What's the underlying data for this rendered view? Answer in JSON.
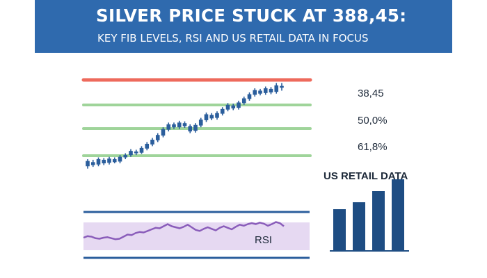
{
  "header": {
    "title": "SILVER PRICE STUCK AT 388,45:",
    "subtitle": "KEY FIB LEVELS, RSI AND US RETAIL DATA IN FOCUS"
  },
  "colors": {
    "banner": "#2f6aae",
    "resistance": "#ee6a5c",
    "fib": "#9fd49a",
    "candle": "#2b5e9c",
    "rsi_band": "#e6d9f2",
    "rsi_line": "#8a5dba",
    "retail_bar": "#1e4d83",
    "panel_rule": "#2b5e9c"
  },
  "chart_data": [
    {
      "type": "candlestick",
      "fib_levels": [
        "38,45",
        "50,0%",
        "61,8%"
      ],
      "rsi_label": "RSI",
      "rsi_values": [
        44,
        47,
        46,
        43,
        42,
        44,
        45,
        43,
        41,
        42,
        46,
        50,
        49,
        53,
        55,
        54,
        57,
        60,
        63,
        62,
        66,
        70,
        66,
        64,
        62,
        65,
        69,
        64,
        59,
        57,
        61,
        64,
        61,
        58,
        63,
        66,
        63,
        60,
        65,
        69,
        67,
        70,
        72,
        70,
        73,
        71,
        67,
        70,
        74,
        72,
        66
      ],
      "candles": [
        [
          27.5,
          32.0,
          25.5,
          33.5
        ],
        [
          31.0,
          28.5,
          27.0,
          33.0
        ],
        [
          29.0,
          33.5,
          27.5,
          35.0
        ],
        [
          33.0,
          30.0,
          28.5,
          34.5
        ],
        [
          30.5,
          34.0,
          29.0,
          35.5
        ],
        [
          33.5,
          31.0,
          30.0,
          35.0
        ],
        [
          31.5,
          35.5,
          30.0,
          37.0
        ],
        [
          35.0,
          37.0,
          33.5,
          38.5
        ],
        [
          37.0,
          40.5,
          35.5,
          42.0
        ],
        [
          40.0,
          38.5,
          37.0,
          41.5
        ],
        [
          39.0,
          43.0,
          38.0,
          44.5
        ],
        [
          42.5,
          46.5,
          41.0,
          48.0
        ],
        [
          46.0,
          50.0,
          44.5,
          51.5
        ],
        [
          49.5,
          54.0,
          48.0,
          55.5
        ],
        [
          53.5,
          59.0,
          52.0,
          60.5
        ],
        [
          58.5,
          63.0,
          57.0,
          64.5
        ],
        [
          63.0,
          60.5,
          59.0,
          64.5
        ],
        [
          60.5,
          64.5,
          59.0,
          66.0
        ],
        [
          64.0,
          61.5,
          60.0,
          65.5
        ],
        [
          61.5,
          57.0,
          55.5,
          63.0
        ],
        [
          57.5,
          62.5,
          56.0,
          64.0
        ],
        [
          62.0,
          67.0,
          60.5,
          68.5
        ],
        [
          66.5,
          71.5,
          65.0,
          73.0
        ],
        [
          71.0,
          68.0,
          66.5,
          72.5
        ],
        [
          68.5,
          72.5,
          67.0,
          74.0
        ],
        [
          72.0,
          76.0,
          70.5,
          77.5
        ],
        [
          75.5,
          79.5,
          74.0,
          81.0
        ],
        [
          79.0,
          76.5,
          75.0,
          80.5
        ],
        [
          77.0,
          81.5,
          75.5,
          83.0
        ],
        [
          81.0,
          85.0,
          79.5,
          86.5
        ],
        [
          84.5,
          88.5,
          83.0,
          90.0
        ],
        [
          88.0,
          92.0,
          86.5,
          93.5
        ],
        [
          91.5,
          89.0,
          87.5,
          93.0
        ],
        [
          89.5,
          93.5,
          88.0,
          95.0
        ],
        [
          93.0,
          90.0,
          88.5,
          94.5
        ],
        [
          90.5,
          96.0,
          89.0,
          98.0
        ],
        [
          95.5,
          94.0,
          91.5,
          98.0
        ]
      ]
    },
    {
      "type": "bar",
      "title": "US RETAIL DATA",
      "values": [
        60,
        70,
        86,
        103
      ],
      "ylim": [
        0,
        110
      ]
    }
  ]
}
